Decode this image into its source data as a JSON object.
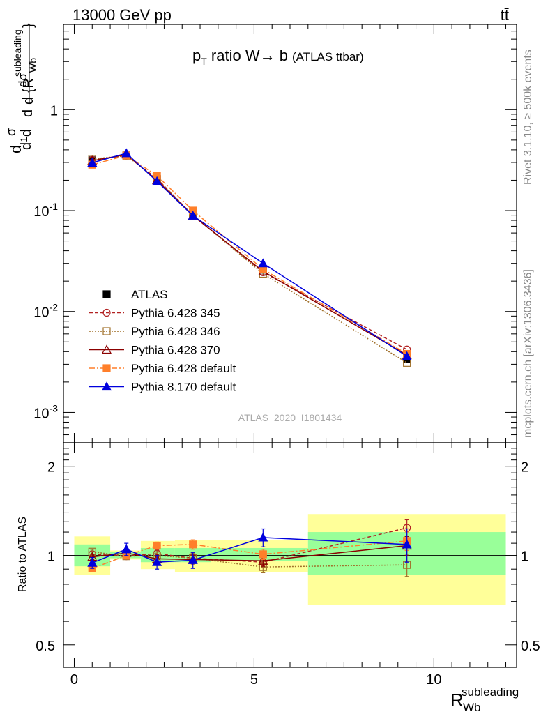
{
  "header": {
    "energy_label": "13000 GeV pp",
    "process_label": "tt̄"
  },
  "side_labels": {
    "rivet": "Rivet 3.1.10, ≥ 500k events",
    "source": "mcplots.cern.ch [arXiv:1306.3436]"
  },
  "analysis_id": "ATLAS_2020_I1801434",
  "colors": {
    "data": "#000000",
    "pythia_345": "#b22222",
    "pythia_346": "#a0702a",
    "pythia_370": "#8b0000",
    "pythia_default6": "#ff7f2a",
    "pythia_8170": "#0000dd",
    "band_stat": "#99ff99",
    "band_total": "#ffff99"
  },
  "chart_data": [
    {
      "type": "line",
      "title_main": "p",
      "title_sub": "T",
      "title_rest": " ratio W",
      "title_arrow": "→",
      "title_end": " b",
      "title_small": "(ATLAS ttbar)",
      "ylabel": "d{σ}/d{R_Wb^subleading}",
      "yscale": "log",
      "ylim": [
        0.0005,
        7
      ],
      "xlim": [
        -0.3,
        12.3
      ],
      "y_ticks": [
        "1",
        "10^-1",
        "10^-2",
        "10^-3"
      ],
      "x": [
        0.5,
        1.45,
        2.3,
        3.3,
        5.25,
        9.25
      ],
      "series": [
        {
          "name": "ATLAS",
          "key": "data",
          "values": [
            0.315,
            0.352,
            0.205,
            0.092,
            0.026,
            0.0034
          ]
        },
        {
          "name": "Pythia 6.428 345",
          "key": "pythia_345",
          "values": [
            0.318,
            0.35,
            0.208,
            0.09,
            0.0245,
            0.0042
          ]
        },
        {
          "name": "Pythia 6.428 346",
          "key": "pythia_346",
          "values": [
            0.325,
            0.35,
            0.205,
            0.09,
            0.0237,
            0.0031
          ]
        },
        {
          "name": "Pythia 6.428 370",
          "key": "pythia_370",
          "values": [
            0.312,
            0.36,
            0.2,
            0.089,
            0.025,
            0.0037
          ]
        },
        {
          "name": "Pythia 6.428 default",
          "key": "pythia_default6",
          "values": [
            0.285,
            0.352,
            0.222,
            0.1,
            0.0262,
            0.0038
          ]
        },
        {
          "name": "Pythia 8.170 default",
          "key": "pythia_8170",
          "values": [
            0.298,
            0.37,
            0.195,
            0.089,
            0.03,
            0.0036
          ]
        }
      ]
    },
    {
      "type": "line",
      "ylabel": "Ratio to ATLAS",
      "yscale": "log",
      "ylim": [
        0.42,
        2.4
      ],
      "xlim": [
        -0.3,
        12.3
      ],
      "xlabel_main": "R",
      "xlabel_sub": "Wb",
      "xlabel_sup": "subleading",
      "y_ticks": [
        "2",
        "1",
        "0.5"
      ],
      "x_ticks": [
        "0",
        "5",
        "10"
      ],
      "bands": [
        {
          "xlo": 0.0,
          "xhi": 1.0,
          "stat": [
            0.92,
            1.09
          ],
          "total": [
            0.86,
            1.16
          ]
        },
        {
          "xlo": 1.0,
          "xhi": 1.85,
          "stat": [
            0.98,
            1.03
          ],
          "total": [
            0.97,
            1.04
          ]
        },
        {
          "xlo": 1.85,
          "xhi": 2.8,
          "stat": [
            0.95,
            1.06
          ],
          "total": [
            0.9,
            1.12
          ]
        },
        {
          "xlo": 2.8,
          "xhi": 3.8,
          "stat": [
            0.95,
            1.06
          ],
          "total": [
            0.88,
            1.13
          ]
        },
        {
          "xlo": 3.8,
          "xhi": 6.5,
          "stat": [
            0.96,
            1.06
          ],
          "total": [
            0.88,
            1.13
          ]
        },
        {
          "xlo": 6.5,
          "xhi": 12.0,
          "stat": [
            0.86,
            1.2
          ],
          "total": [
            0.68,
            1.38
          ]
        }
      ],
      "series": [
        {
          "name": "Pythia 6.428 345",
          "key": "pythia_345",
          "values": [
            1.01,
            0.995,
            1.015,
            0.98,
            0.95,
            1.24
          ],
          "err": [
            0.02,
            0.02,
            0.03,
            0.04,
            0.04,
            0.08
          ]
        },
        {
          "name": "Pythia 6.428 346",
          "key": "pythia_346",
          "values": [
            1.03,
            0.995,
            1.0,
            0.98,
            0.915,
            0.93
          ],
          "err": [
            0.02,
            0.02,
            0.03,
            0.04,
            0.04,
            0.08
          ]
        },
        {
          "name": "Pythia 6.428 370",
          "key": "pythia_370",
          "values": [
            0.99,
            1.02,
            0.975,
            0.97,
            0.96,
            1.08
          ],
          "err": [
            0.02,
            0.02,
            0.03,
            0.04,
            0.04,
            0.08
          ]
        },
        {
          "name": "Pythia 6.428 default",
          "key": "pythia_default6",
          "values": [
            0.905,
            1.0,
            1.08,
            1.09,
            1.01,
            1.12
          ],
          "err": [
            0.02,
            0.02,
            0.03,
            0.04,
            0.04,
            0.08
          ]
        },
        {
          "name": "Pythia 8.170 default",
          "key": "pythia_8170",
          "values": [
            0.945,
            1.05,
            0.95,
            0.965,
            1.15,
            1.09
          ],
          "err": [
            0.04,
            0.05,
            0.05,
            0.06,
            0.08,
            0.14
          ]
        }
      ]
    }
  ]
}
